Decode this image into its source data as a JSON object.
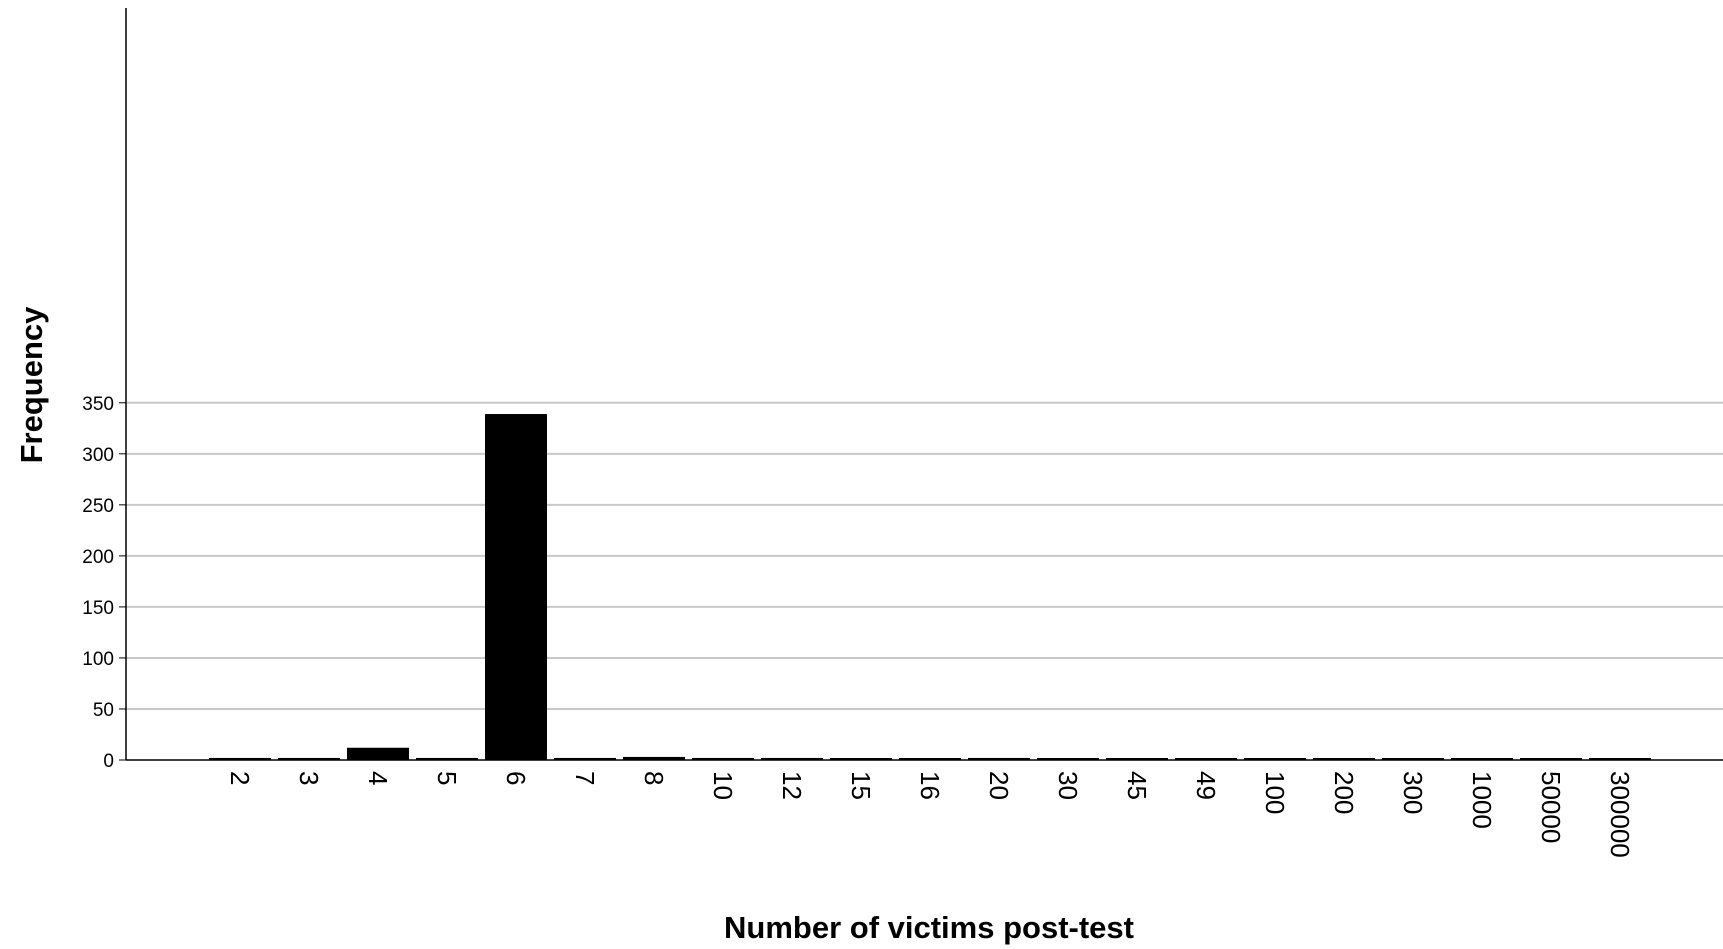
{
  "chart_data": {
    "type": "bar",
    "title": "",
    "xlabel": "Number of victims post-test",
    "ylabel": "Frequency",
    "ylim": [
      0,
      365
    ],
    "yticks": [
      0,
      50,
      100,
      150,
      200,
      250,
      300,
      350
    ],
    "grid": true,
    "categories": [
      "2",
      "3",
      "4",
      "5",
      "6",
      "7",
      "8",
      "10",
      "12",
      "15",
      "16",
      "20",
      "30",
      "45",
      "49",
      "100",
      "200",
      "300",
      "1000",
      "50000",
      "300000"
    ],
    "values": [
      2,
      2,
      12,
      2,
      339,
      2,
      3,
      2,
      2,
      1,
      1,
      2,
      1,
      1,
      1,
      1,
      1,
      1,
      1,
      1,
      1
    ],
    "colors": {
      "bar": "#000000",
      "grid": "#c8c8c8",
      "axis": "#000000",
      "background": "#ffffff"
    }
  }
}
